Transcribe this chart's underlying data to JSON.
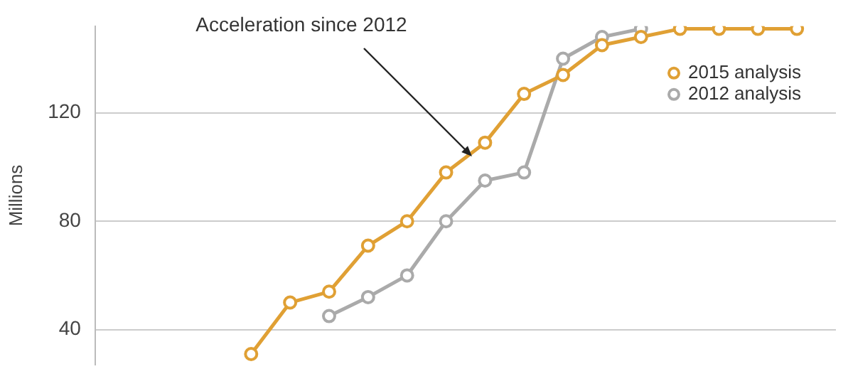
{
  "chart_data": {
    "type": "line",
    "ylabel": "Millions",
    "annotations": [
      "Acceleration since 2012"
    ],
    "categories": [
      null,
      null,
      null,
      null,
      null,
      null,
      null,
      null,
      null,
      null,
      null,
      null,
      null,
      null,
      null,
      null,
      null,
      null,
      null,
      null
    ],
    "series": [
      {
        "name": "2015 analysis",
        "color": "#e0a034",
        "values": [
          null,
          null,
          null,
          null,
          31,
          50,
          54,
          71,
          80,
          98,
          109,
          127,
          134,
          145,
          148,
          151,
          151,
          151,
          151,
          null
        ]
      },
      {
        "name": "2012 analysis",
        "color": "#aaaaaa",
        "values": [
          null,
          null,
          null,
          null,
          null,
          null,
          45,
          52,
          60,
          80,
          95,
          98,
          140,
          148,
          151,
          null,
          null,
          null,
          null,
          null
        ]
      }
    ],
    "ylim": [
      27,
      152
    ],
    "yticks": [
      40,
      80,
      120
    ],
    "grid": "y",
    "legend": "top right",
    "marker": "circle",
    "line_style": "solid",
    "tick_labels": "y"
  }
}
